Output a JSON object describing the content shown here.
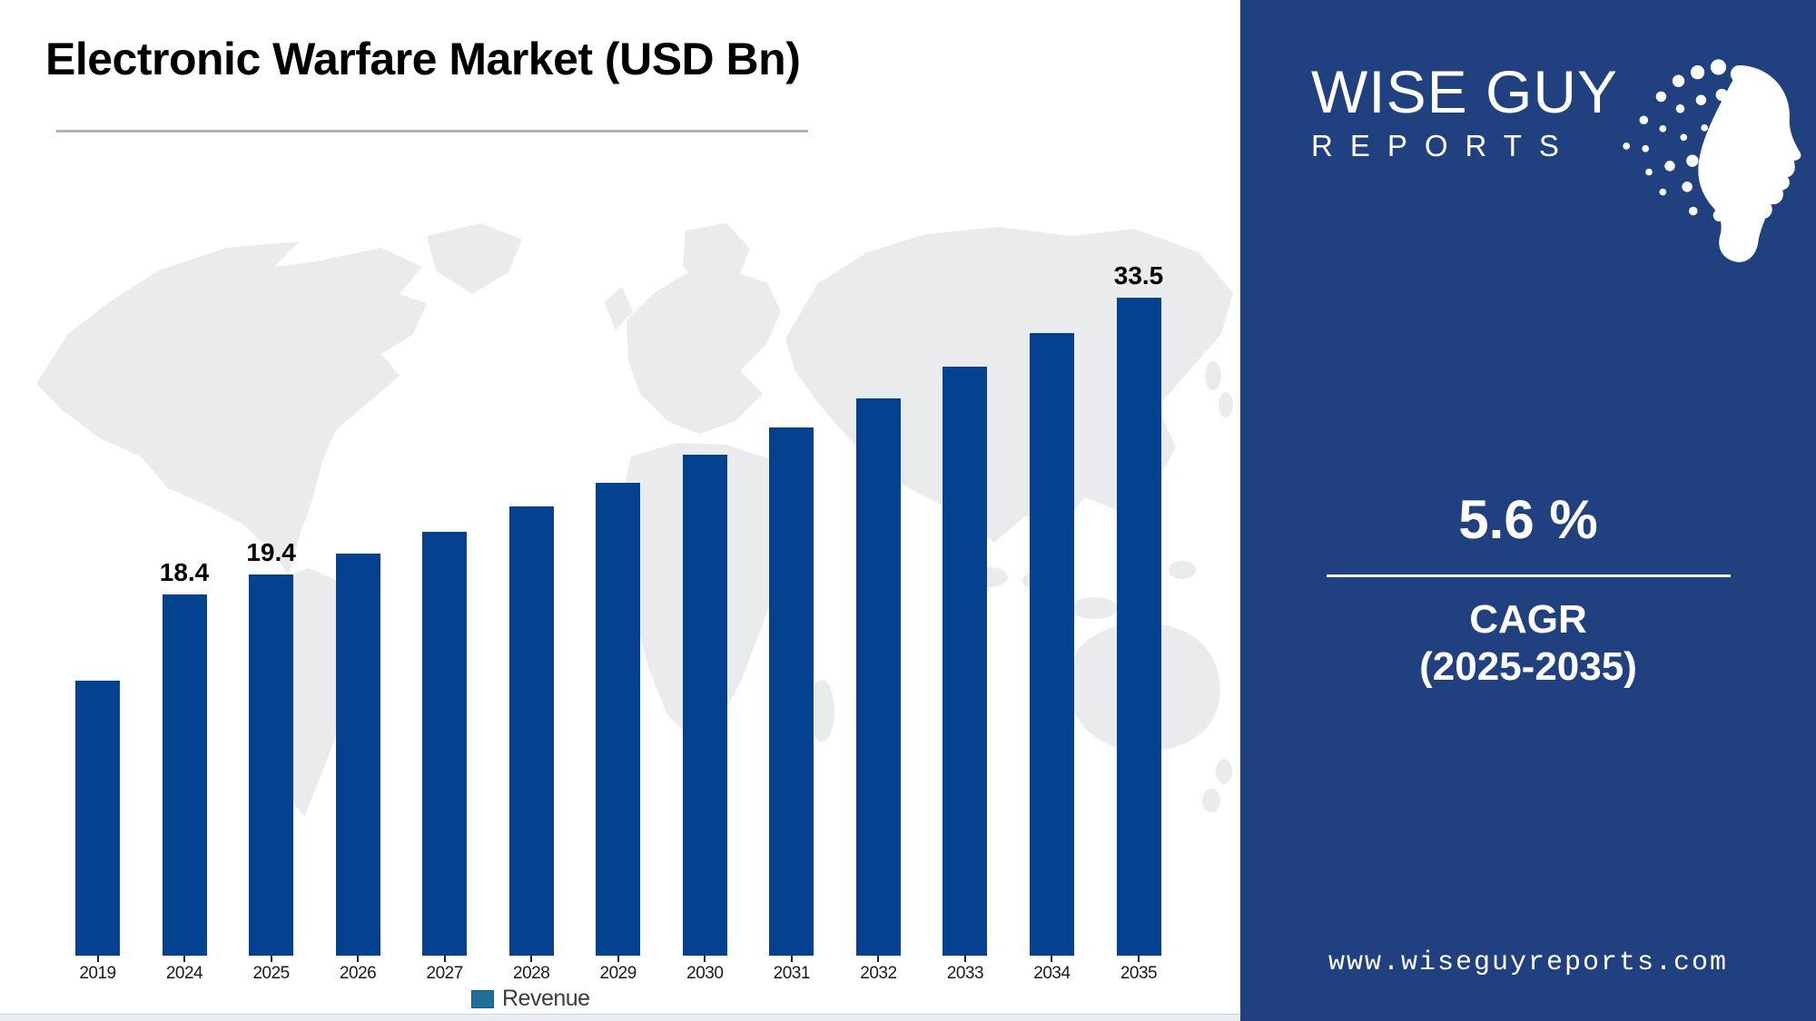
{
  "page": {
    "title": "Electronic Warfare Market (USD Bn)"
  },
  "chart_data": {
    "type": "bar",
    "title": "Electronic Warfare Market (USD Bn)",
    "unit": "USD Bn",
    "categories": [
      "2019",
      "2024",
      "2025",
      "2026",
      "2027",
      "2028",
      "2029",
      "2030",
      "2031",
      "2032",
      "2033",
      "2034",
      "2035"
    ],
    "series": [
      {
        "name": "Revenue",
        "values": [
          14.0,
          18.4,
          19.4,
          20.5,
          21.6,
          22.9,
          24.1,
          25.5,
          26.9,
          28.4,
          30.0,
          31.7,
          33.5
        ]
      }
    ],
    "value_labels": [
      "",
      "18.4",
      "19.4",
      "",
      "",
      "",
      "",
      "",
      "",
      "",
      "",
      "",
      "33.5"
    ],
    "ylim": [
      0,
      36
    ],
    "grid": false,
    "legend_position": "bottom-center",
    "bar_color": "#04418f",
    "legend_swatch_color": "#1d7099",
    "background": "world-map-watermark"
  },
  "legend": {
    "label": "Revenue"
  },
  "brand_panel": {
    "logo_line1": "WISE GUY",
    "logo_line2": "REPORTS",
    "cagr_value": "5.6 %",
    "cagr_label": "CAGR",
    "cagr_range": "(2025-2035)",
    "website": "www.wiseguyreports.com",
    "background_color": "#21407f",
    "text_color": "#ffffff"
  }
}
